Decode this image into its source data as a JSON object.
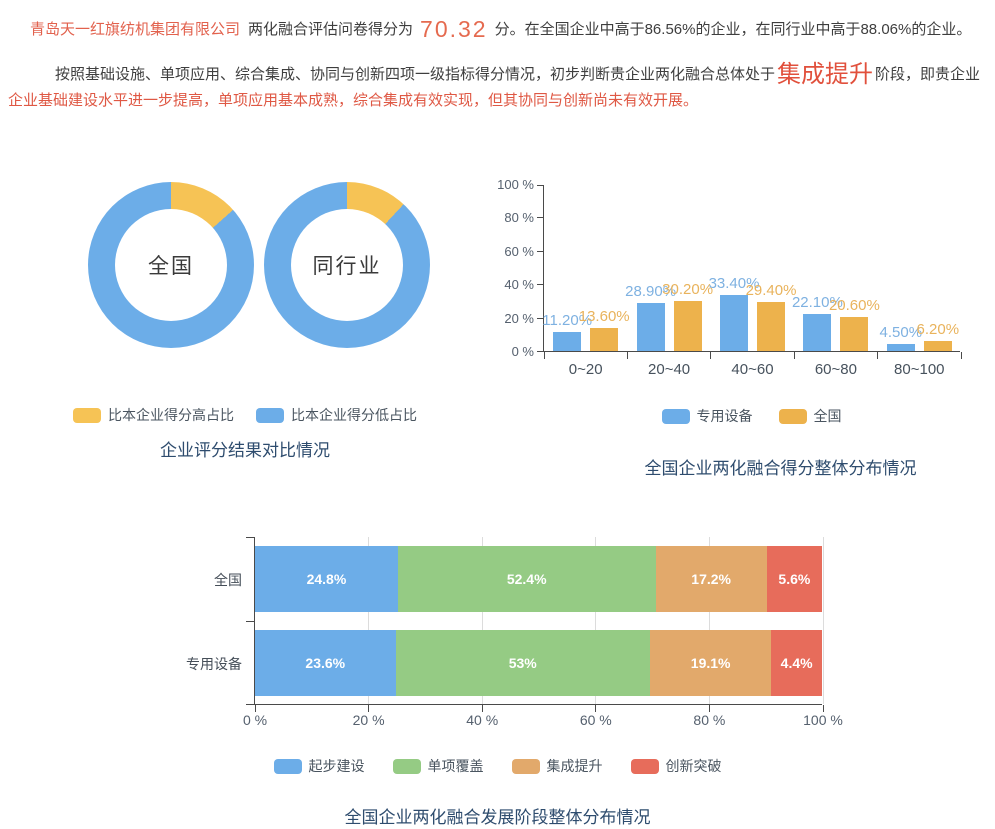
{
  "summary": {
    "company": "青岛天一红旗纺机集团有限公司",
    "score_prefix": "两化融合评估问卷得分为",
    "score": "70.32",
    "score_suffix": "分。在全国企业中高于86.56%的企业，在同行业中高于88.06%的企业。",
    "assessment_part1": "按照基础设施、单项应用、综合集成、协同与创新四项一级指标得分情况，初步判断贵企业两化融合总体处于",
    "stage": "集成提升",
    "assessment_part2": "阶段，即贵企业",
    "assessment_part3": "企业基础建设水平进一步提高，单项应用基本成熟，综合集成有效实现，但其协同与创新尚未有效开展。"
  },
  "colors": {
    "blue": "#6CADE8",
    "donut_yellow": "#F6C355",
    "bar_yellow": "#EDB24C",
    "green": "#95CB84",
    "tan": "#E2A96B",
    "red": "#E76C5B",
    "title_navy": "#2E4C6E",
    "accent_red": "#DF5844"
  },
  "chart_data": [
    {
      "type": "pie",
      "variant": "double-donut",
      "title": "企业评分结果对比情况",
      "legend_position": "bottom",
      "slice_names": [
        "比本企业得分高占比",
        "比本企业得分低占比"
      ],
      "colors": {
        "high": "#F6C355",
        "low": "#6CADE8"
      },
      "donuts": [
        {
          "id": "national",
          "label": "全国",
          "values": [
            {
              "name": "比本企业得分高占比",
              "value": 13.44
            },
            {
              "name": "比本企业得分低占比",
              "value": 86.56
            }
          ]
        },
        {
          "id": "industry",
          "label": "同行业",
          "values": [
            {
              "name": "比本企业得分高占比",
              "value": 11.94
            },
            {
              "name": "比本企业得分低占比",
              "value": 88.06
            }
          ]
        }
      ]
    },
    {
      "type": "bar",
      "title": "全国企业两化融合得分整体分布情况",
      "categories": [
        "0~20",
        "20~40",
        "40~60",
        "60~80",
        "80~100"
      ],
      "series": [
        {
          "id": "special-equipment",
          "name": "专用设备",
          "color": "#6CADE8",
          "label_color": "#7EB1E1",
          "values": [
            11.2,
            28.9,
            33.4,
            22.1,
            4.5
          ]
        },
        {
          "id": "national",
          "name": "全国",
          "color": "#EDB24C",
          "label_color": "#E9B35C",
          "values": [
            13.6,
            30.2,
            29.4,
            20.6,
            6.2
          ]
        }
      ],
      "ylim": [
        0,
        100
      ],
      "ytick_step": 20,
      "ytick_suffix": " %",
      "value_suffix": "%",
      "legend_position": "bottom",
      "grid": false
    },
    {
      "type": "bar",
      "variant": "horizontal-stacked",
      "title": "全国企业两化融合发展阶段整体分布情况",
      "categories": [
        "全国",
        "专用设备"
      ],
      "series": [
        {
          "id": "initial-construction",
          "name": "起步建设",
          "color": "#6CADE8",
          "values": [
            24.8,
            23.6
          ]
        },
        {
          "id": "single-coverage",
          "name": "单项覆盖",
          "color": "#95CB84",
          "values": [
            52.4,
            53
          ]
        },
        {
          "id": "integration-improvement",
          "name": "集成提升",
          "color": "#E2A96B",
          "values": [
            17.2,
            19.1
          ]
        },
        {
          "id": "innovation-breakthrough",
          "name": "创新突破",
          "color": "#E76C5B",
          "values": [
            5.6,
            4.4
          ]
        }
      ],
      "xlim": [
        0,
        100
      ],
      "xtick_step": 20,
      "xtick_suffix": " %",
      "value_suffix": "%",
      "legend_position": "bottom",
      "grid": true
    }
  ]
}
